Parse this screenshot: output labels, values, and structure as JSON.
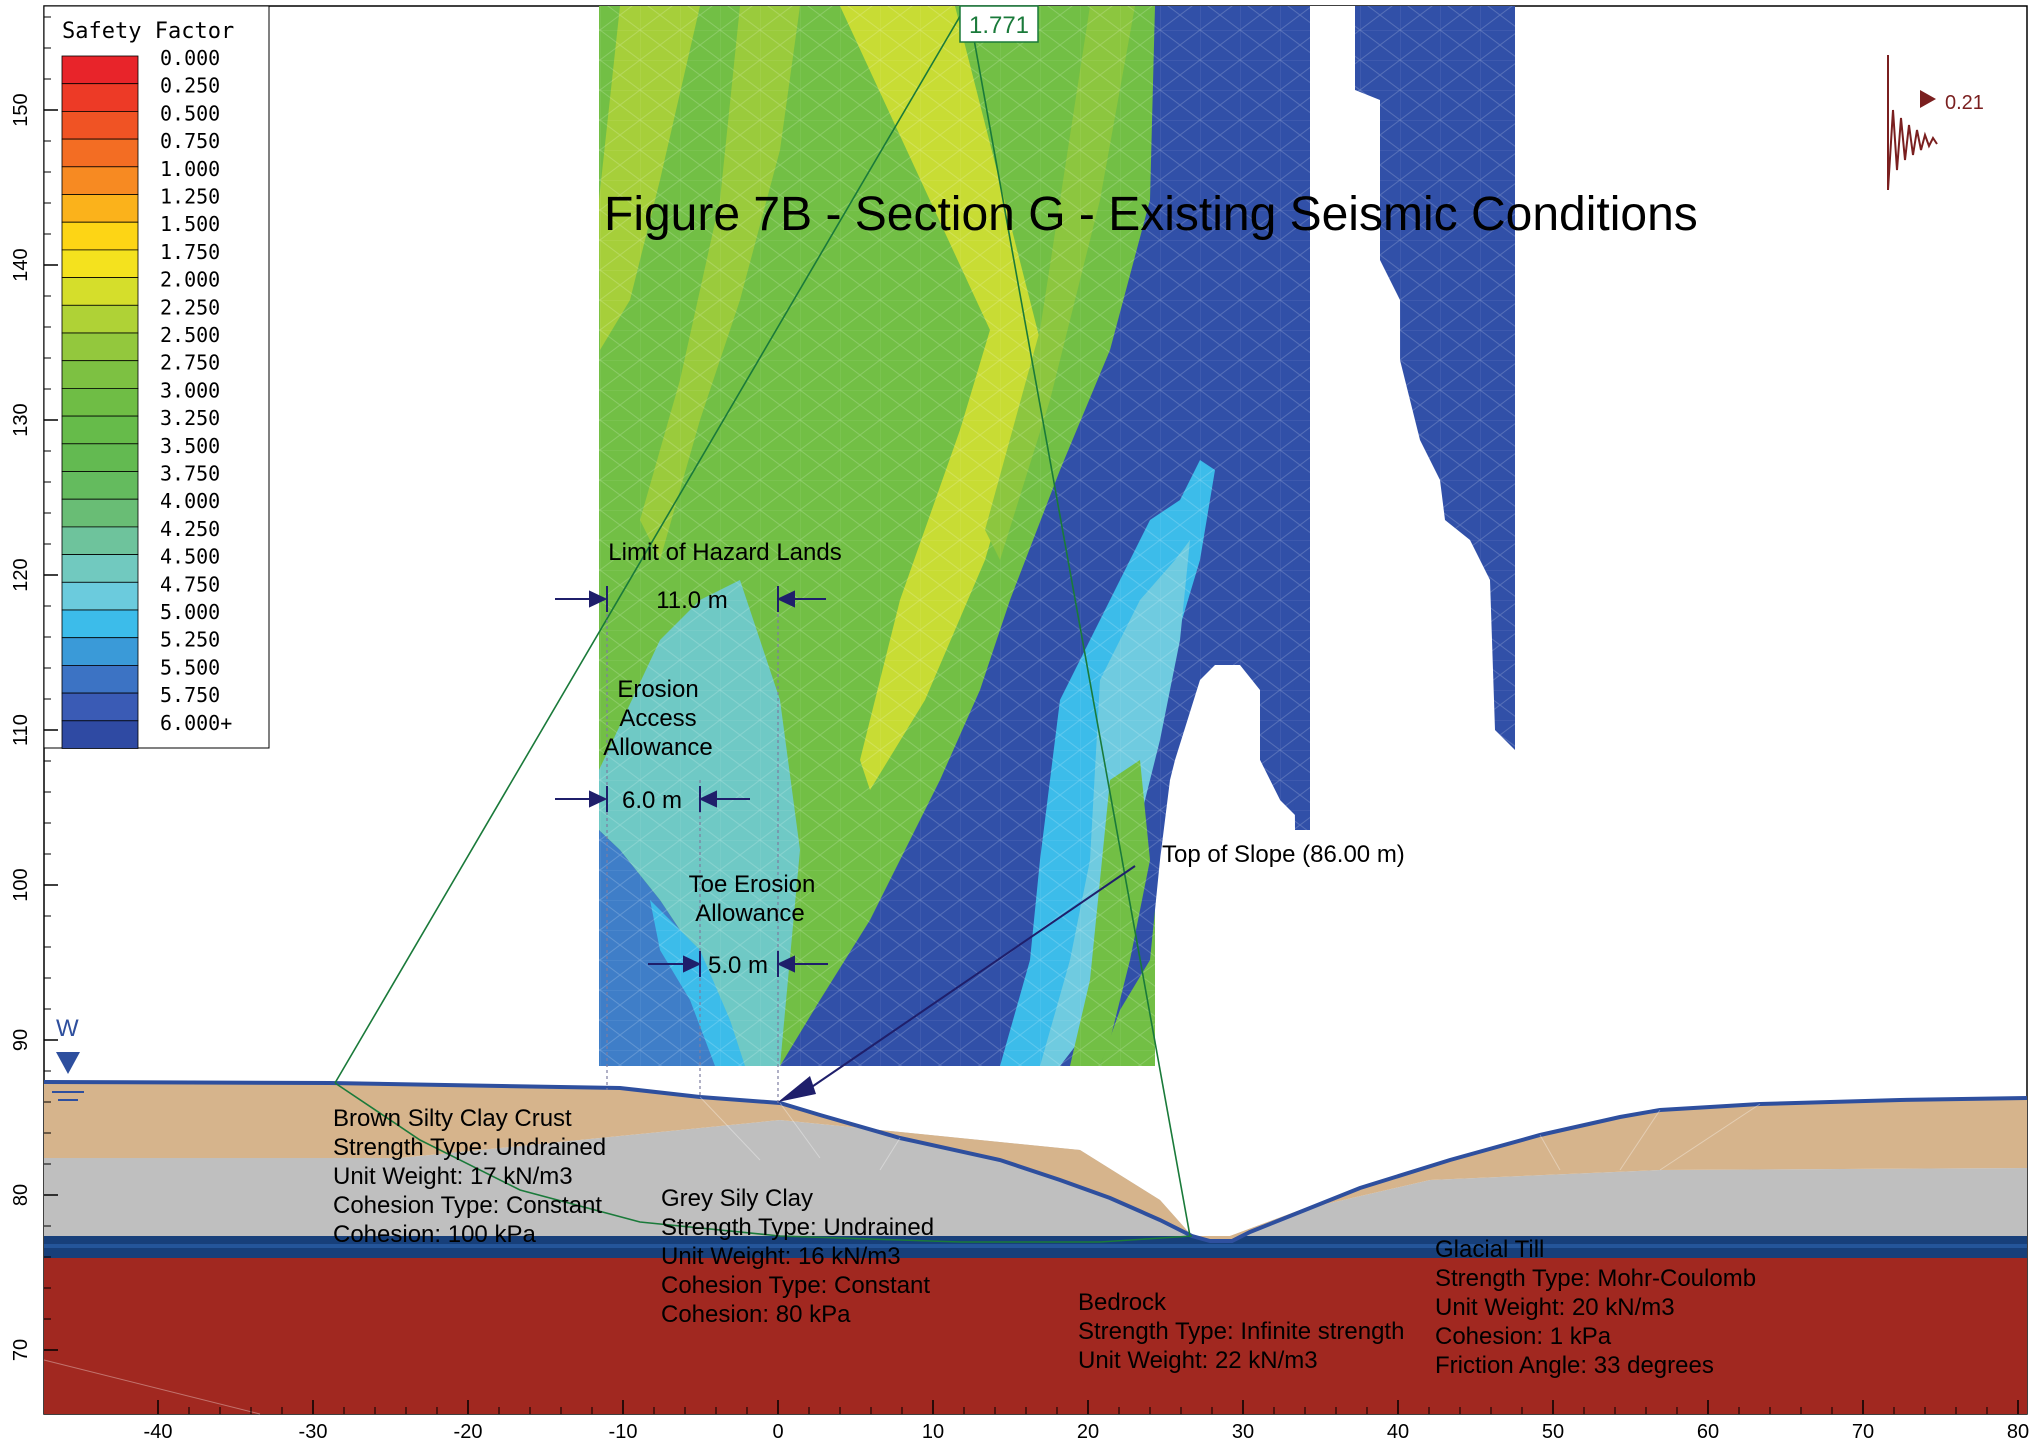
{
  "title": "Figure 7B - Section G - Existing Seismic Conditions",
  "legend": {
    "title": "Safety Factor",
    "entries": [
      {
        "label": "0.000",
        "color": "#e8242a"
      },
      {
        "label": "0.250",
        "color": "#ed3a26"
      },
      {
        "label": "0.500",
        "color": "#f05324"
      },
      {
        "label": "0.750",
        "color": "#f36d23"
      },
      {
        "label": "1.000",
        "color": "#f78a22"
      },
      {
        "label": "1.250",
        "color": "#fbb21b"
      },
      {
        "label": "1.500",
        "color": "#fdd515"
      },
      {
        "label": "1.750",
        "color": "#f4e21e"
      },
      {
        "label": "2.000",
        "color": "#d5de2b"
      },
      {
        "label": "2.250",
        "color": "#afd236"
      },
      {
        "label": "2.500",
        "color": "#93c83d"
      },
      {
        "label": "2.750",
        "color": "#7dc142"
      },
      {
        "label": "3.000",
        "color": "#6fbd45"
      },
      {
        "label": "3.250",
        "color": "#66bb4a"
      },
      {
        "label": "3.500",
        "color": "#63ba51"
      },
      {
        "label": "3.750",
        "color": "#64bb5e"
      },
      {
        "label": "4.000",
        "color": "#69bd75"
      },
      {
        "label": "4.250",
        "color": "#6ec39c"
      },
      {
        "label": "4.500",
        "color": "#71c9bf"
      },
      {
        "label": "4.750",
        "color": "#6bcbdd"
      },
      {
        "label": "5.000",
        "color": "#3cbcea"
      },
      {
        "label": "5.250",
        "color": "#3a9ad8"
      },
      {
        "label": "5.500",
        "color": "#3c73c4"
      },
      {
        "label": "5.750",
        "color": "#3a5bb5"
      },
      {
        "label": "6.000+",
        "color": "#2f4aa3"
      }
    ]
  },
  "axes": {
    "x_ticks": [
      "-40",
      "-30",
      "-20",
      "-10",
      "0",
      "10",
      "20",
      "30",
      "40",
      "50",
      "60",
      "70",
      "80"
    ],
    "y_ticks": [
      "70",
      "80",
      "90",
      "100",
      "110",
      "120",
      "130",
      "140",
      "150"
    ]
  },
  "factor_of_safety_label": "1.771",
  "seismic_load": {
    "value": "0.21",
    "color": "#7a1f1f"
  },
  "water_table_label": "W",
  "annotations": {
    "hazard_limit": {
      "title": "Limit of Hazard Lands",
      "dimension": "11.0 m"
    },
    "erosion_access": {
      "line1": "Erosion",
      "line2": "Access",
      "line3": "Allowance",
      "dimension": "6.0 m"
    },
    "toe_erosion": {
      "line1": "Toe Erosion",
      "line2": "Allowance",
      "dimension": "5.0 m"
    },
    "top_of_slope": "Top of Slope (86.00 m)"
  },
  "materials": {
    "brown_clay": {
      "name": "Brown Silty Clay Crust",
      "strength": "Strength Type: Undrained",
      "unit_weight": "Unit Weight: 17 kN/m3",
      "cohesion_type": "Cohesion Type: Constant",
      "cohesion": "Cohesion: 100 kPa",
      "color": "#d6b48c"
    },
    "grey_clay": {
      "name": "Grey Sily Clay",
      "strength": "Strength Type: Undrained",
      "unit_weight": "Unit Weight: 16 kN/m3",
      "cohesion_type": "Cohesion Type: Constant",
      "cohesion": "Cohesion: 80 kPa",
      "color": "#bfbfbf"
    },
    "bedrock": {
      "name": "Bedrock",
      "strength": "Strength Type: Infinite strength",
      "unit_weight": "Unit Weight: 22 kN/m3",
      "color": "#a12820"
    },
    "glacial_till": {
      "name": "Glacial Till",
      "strength": "Strength Type: Mohr-Coulomb",
      "unit_weight": "Unit Weight: 20 kN/m3",
      "cohesion": "Cohesion: 1 kPa",
      "friction": "Friction Angle: 33 degrees",
      "color": "#173f7a"
    }
  },
  "colors": {
    "annotation": "#1f1f6b",
    "slip_line": "#1a7a3a",
    "ground_line": "#2e4f9e"
  }
}
